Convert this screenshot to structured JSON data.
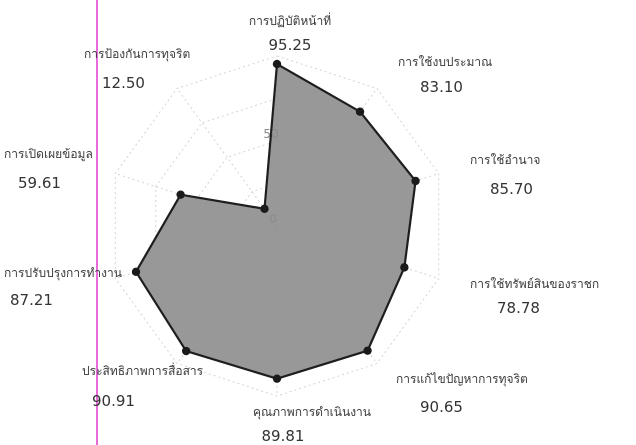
{
  "chart_data": {
    "type": "radar",
    "title": "",
    "rlim": [
      0,
      100
    ],
    "r_ticks": [
      {
        "value": 0,
        "label": "0"
      },
      {
        "value": 50,
        "label": "50"
      }
    ],
    "grid": true,
    "categories": [
      "การปฏิบัติหน้าที่",
      "การใช้งบประมาณ",
      "การใช้อำนาจ",
      "การใช้ทรัพย์สินของราชก",
      "การแก้ไขปัญหาการทุจริต",
      "คุณภาพการดำเนินงาน",
      "ประสิทธิภาพการสื่อสาร",
      "การปรับปรุงการทำงาน",
      "การเปิดเผยข้อมูล",
      "การป้องกันการทุจริต"
    ],
    "value_labels": [
      "95.25",
      "83.10",
      "85.70",
      "78.78",
      "90.65",
      "89.81",
      "90.91",
      "87.21",
      "59.61",
      "12.50"
    ],
    "series": [
      {
        "values": [
          95.25,
          83.1,
          85.7,
          78.78,
          90.65,
          89.81,
          90.91,
          87.21,
          59.61,
          12.5
        ]
      }
    ],
    "colors": {
      "fill": "#8f8f8f",
      "stroke": "#1e1e1e",
      "point": "#1a1a1a",
      "grid": "#d4d4d4",
      "margin_line": "#e03ad0"
    }
  }
}
